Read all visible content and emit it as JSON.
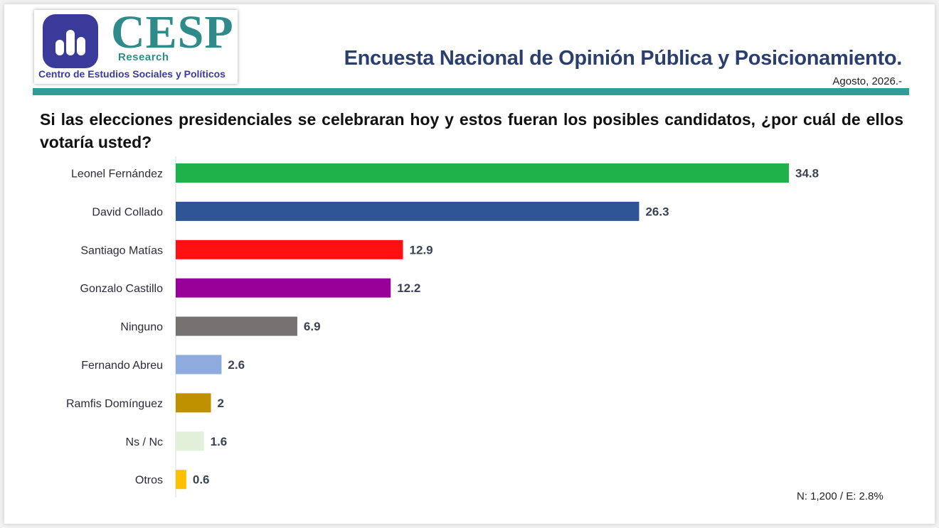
{
  "logo": {
    "brand": "CESP",
    "tagline": "Research",
    "subtitle": "Centro de Estudios Sociales y Políticos"
  },
  "header": {
    "title": "Encuesta Nacional de Opinión Pública y Posicionamiento.",
    "date": "Agosto, 2026.-"
  },
  "question": "Si las elecciones presidenciales se celebraran hoy y estos fueran los posibles candidatos, ¿por cuál de ellos votaría usted?",
  "sample_note": "N: 1,200 / E: 2.8%",
  "colors": {
    "accent_teal": "#2e9e99",
    "title_navy": "#2b3f6e"
  },
  "chart_data": {
    "type": "bar",
    "orientation": "horizontal",
    "title": "",
    "xlabel": "",
    "ylabel": "",
    "grid": false,
    "xlim": [
      0,
      34.8
    ],
    "categories": [
      "Leonel Fernández",
      "David Collado",
      "Santiago Matías",
      "Gonzalo Castillo",
      "Ninguno",
      "Fernando Abreu",
      "Ramfis Domínguez",
      "Ns / Nc",
      "Otros"
    ],
    "values": [
      34.8,
      26.3,
      12.9,
      12.2,
      6.9,
      2.6,
      2,
      1.6,
      0.6
    ],
    "value_labels": [
      "34.8",
      "26.3",
      "12.9",
      "12.2",
      "6.9",
      "2.6",
      "2",
      "1.6",
      "0.6"
    ],
    "bar_colors": [
      "#1fb24a",
      "#2f5597",
      "#ff1010",
      "#990099",
      "#767171",
      "#8faadc",
      "#bf9000",
      "#e2f0d9",
      "#ffc000"
    ]
  }
}
